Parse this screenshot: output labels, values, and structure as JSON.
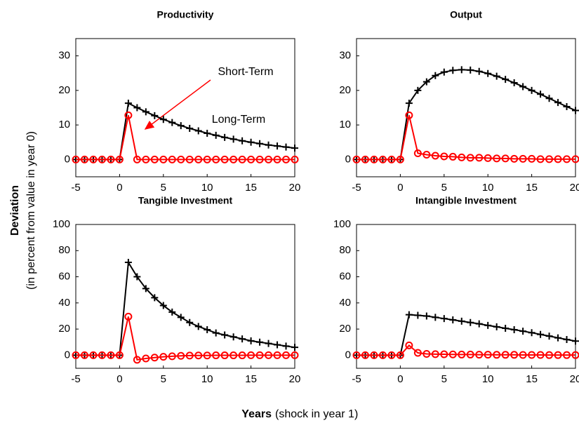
{
  "chart_data": [
    {
      "type": "line",
      "title": "Productivity",
      "x": [
        -5,
        -4,
        -3,
        -2,
        -1,
        0,
        1,
        2,
        3,
        4,
        5,
        6,
        7,
        8,
        9,
        10,
        11,
        12,
        13,
        14,
        15,
        16,
        17,
        18,
        19,
        20
      ],
      "series": [
        {
          "color": "#000000",
          "marker": "plus",
          "values": [
            0,
            0,
            0,
            0,
            0,
            0,
            16.3,
            15.0,
            13.8,
            12.7,
            11.6,
            10.7,
            9.8,
            9.0,
            8.3,
            7.6,
            7.0,
            6.4,
            5.9,
            5.4,
            5.0,
            4.6,
            4.2,
            3.9,
            3.6,
            3.3
          ]
        },
        {
          "color": "#ff0000",
          "marker": "circle",
          "values": [
            0,
            0,
            0,
            0,
            0,
            0,
            12.8,
            0,
            0,
            0,
            0,
            0,
            0,
            0,
            0,
            0,
            0,
            0,
            0,
            0,
            0,
            0,
            0,
            0,
            0,
            0
          ]
        }
      ],
      "annotations": [
        {
          "text": "Short-Term",
          "color": "#ff0000"
        },
        {
          "text": "Long-Term",
          "color": "#000000"
        }
      ],
      "xlim": [
        -5,
        20
      ],
      "ylim": [
        -5,
        35
      ],
      "xticks": [
        -5,
        0,
        5,
        10,
        15,
        20
      ],
      "yticks": [
        0,
        10,
        20,
        30
      ]
    },
    {
      "type": "line",
      "title": "Output",
      "x": [
        -5,
        -4,
        -3,
        -2,
        -1,
        0,
        1,
        2,
        3,
        4,
        5,
        6,
        7,
        8,
        9,
        10,
        11,
        12,
        13,
        14,
        15,
        16,
        17,
        18,
        19,
        20
      ],
      "series": [
        {
          "color": "#000000",
          "marker": "plus",
          "values": [
            0,
            0,
            0,
            0,
            0,
            0,
            16.3,
            20.0,
            22.5,
            24.3,
            25.3,
            25.8,
            26.0,
            25.9,
            25.5,
            24.9,
            24.1,
            23.2,
            22.2,
            21.1,
            20.0,
            18.9,
            17.7,
            16.5,
            15.3,
            14.2
          ]
        },
        {
          "color": "#ff0000",
          "marker": "circle",
          "values": [
            0,
            0,
            0,
            0,
            0,
            0,
            12.8,
            1.8,
            1.4,
            1.1,
            0.9,
            0.8,
            0.6,
            0.5,
            0.5,
            0.4,
            0.3,
            0.3,
            0.2,
            0.2,
            0.2,
            0.1,
            0.1,
            0.1,
            0.1,
            0.1
          ]
        }
      ],
      "xlim": [
        -5,
        20
      ],
      "ylim": [
        -5,
        35
      ],
      "xticks": [
        -5,
        0,
        5,
        10,
        15,
        20
      ],
      "yticks": [
        0,
        10,
        20,
        30
      ]
    },
    {
      "type": "line",
      "title": "Tangible Investment",
      "x": [
        -5,
        -4,
        -3,
        -2,
        -1,
        0,
        1,
        2,
        3,
        4,
        5,
        6,
        7,
        8,
        9,
        10,
        11,
        12,
        13,
        14,
        15,
        16,
        17,
        18,
        19,
        20
      ],
      "series": [
        {
          "color": "#000000",
          "marker": "plus",
          "values": [
            0,
            0,
            0,
            0,
            0,
            0,
            71,
            60,
            51,
            44,
            38,
            33,
            29,
            25,
            22,
            19.5,
            17,
            15.5,
            14,
            12.5,
            11,
            10,
            9,
            8,
            7,
            6
          ]
        },
        {
          "color": "#ff0000",
          "marker": "circle",
          "values": [
            0,
            0,
            0,
            0,
            0,
            0,
            29.5,
            -3.5,
            -2.5,
            -1.8,
            -1.2,
            -0.8,
            -0.5,
            -0.3,
            -0.2,
            -0.2,
            -0.1,
            -0.1,
            -0.1,
            -0.1,
            0,
            0,
            0,
            0,
            0,
            0
          ]
        }
      ],
      "xlim": [
        -5,
        20
      ],
      "ylim": [
        -10,
        100
      ],
      "xticks": [
        -5,
        0,
        5,
        10,
        15,
        20
      ],
      "yticks": [
        0,
        20,
        40,
        60,
        80,
        100
      ]
    },
    {
      "type": "line",
      "title": "Intangible Investment",
      "x": [
        -5,
        -4,
        -3,
        -2,
        -1,
        0,
        1,
        2,
        3,
        4,
        5,
        6,
        7,
        8,
        9,
        10,
        11,
        12,
        13,
        14,
        15,
        16,
        17,
        18,
        19,
        20
      ],
      "series": [
        {
          "color": "#000000",
          "marker": "plus",
          "values": [
            0,
            0,
            0,
            0,
            0,
            0,
            31,
            30.5,
            30,
            29,
            28,
            27,
            26,
            25,
            24,
            22.8,
            21.7,
            20.6,
            19.5,
            18.4,
            17.2,
            15.9,
            14.6,
            13.3,
            12,
            10.8
          ]
        },
        {
          "color": "#ff0000",
          "marker": "circle",
          "values": [
            0,
            0,
            0,
            0,
            0,
            0,
            7.5,
            1.8,
            1.0,
            0.8,
            0.7,
            0.6,
            0.5,
            0.5,
            0.4,
            0.4,
            0.3,
            0.3,
            0.3,
            0.2,
            0.2,
            0.2,
            0.1,
            0.1,
            0.1,
            0.1
          ]
        }
      ],
      "xlim": [
        -5,
        20
      ],
      "ylim": [
        -10,
        100
      ],
      "xticks": [
        -5,
        0,
        5,
        10,
        15,
        20
      ],
      "yticks": [
        0,
        20,
        40,
        60,
        80,
        100
      ]
    }
  ],
  "figure": {
    "y_label_bold": "Deviation",
    "y_label": "(in percent from value in year 0)",
    "x_label_bold": "Years",
    "x_label": "(shock in year 1)"
  }
}
